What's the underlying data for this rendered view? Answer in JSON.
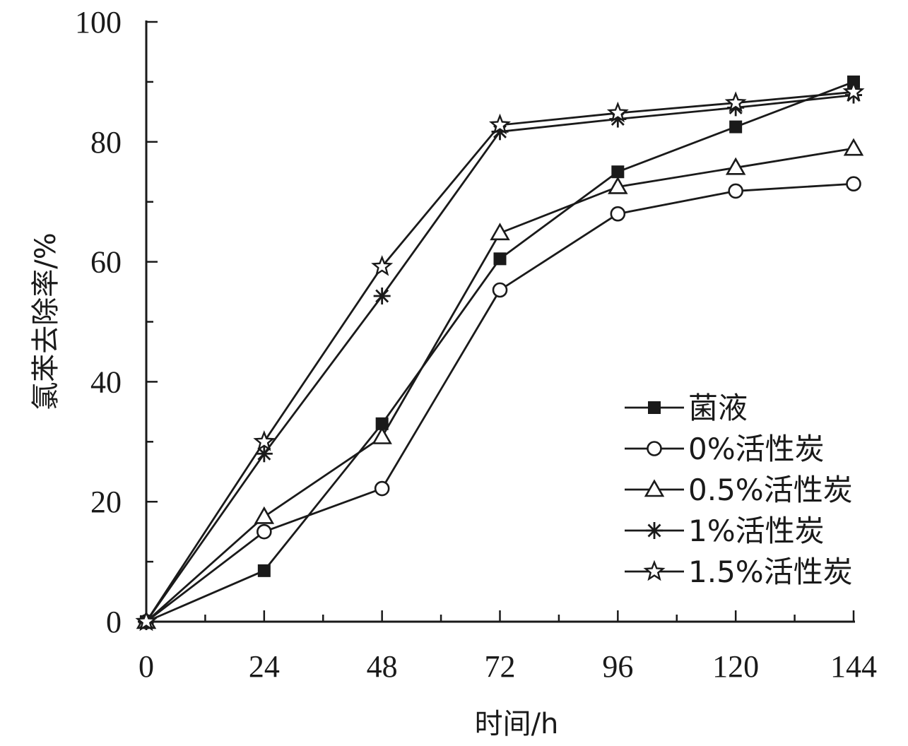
{
  "chart_data": {
    "type": "line",
    "title": "",
    "xlabel": "时间/h",
    "ylabel": "氯苯去除率/%",
    "x": [
      0,
      24,
      48,
      72,
      96,
      120,
      144
    ],
    "xticks": [
      0,
      24,
      48,
      72,
      96,
      120,
      144
    ],
    "yticks": [
      0,
      20,
      40,
      60,
      80,
      100
    ],
    "xlim": [
      0,
      144
    ],
    "ylim": [
      0,
      100
    ],
    "grid": false,
    "legend_position": "bottom-right",
    "series": [
      {
        "name": "菌液",
        "marker": "filled-square",
        "values": [
          0,
          8.5,
          33,
          60.5,
          75,
          82.5,
          90
        ]
      },
      {
        "name": "0%活性炭",
        "marker": "open-circle",
        "values": [
          0,
          15,
          22.2,
          55.3,
          68,
          71.8,
          73
        ]
      },
      {
        "name": "0.5%活性炭",
        "marker": "open-triangle",
        "values": [
          0,
          17.5,
          30.8,
          64.8,
          72.5,
          75.7,
          78.9
        ]
      },
      {
        "name": "1%活性炭",
        "marker": "asterisk",
        "values": [
          0,
          28,
          54.3,
          81.7,
          83.8,
          85.7,
          87.8
        ]
      },
      {
        "name": "1.5%活性炭",
        "marker": "star",
        "values": [
          0,
          30,
          59.2,
          82.8,
          84.8,
          86.5,
          88.3
        ]
      }
    ]
  }
}
